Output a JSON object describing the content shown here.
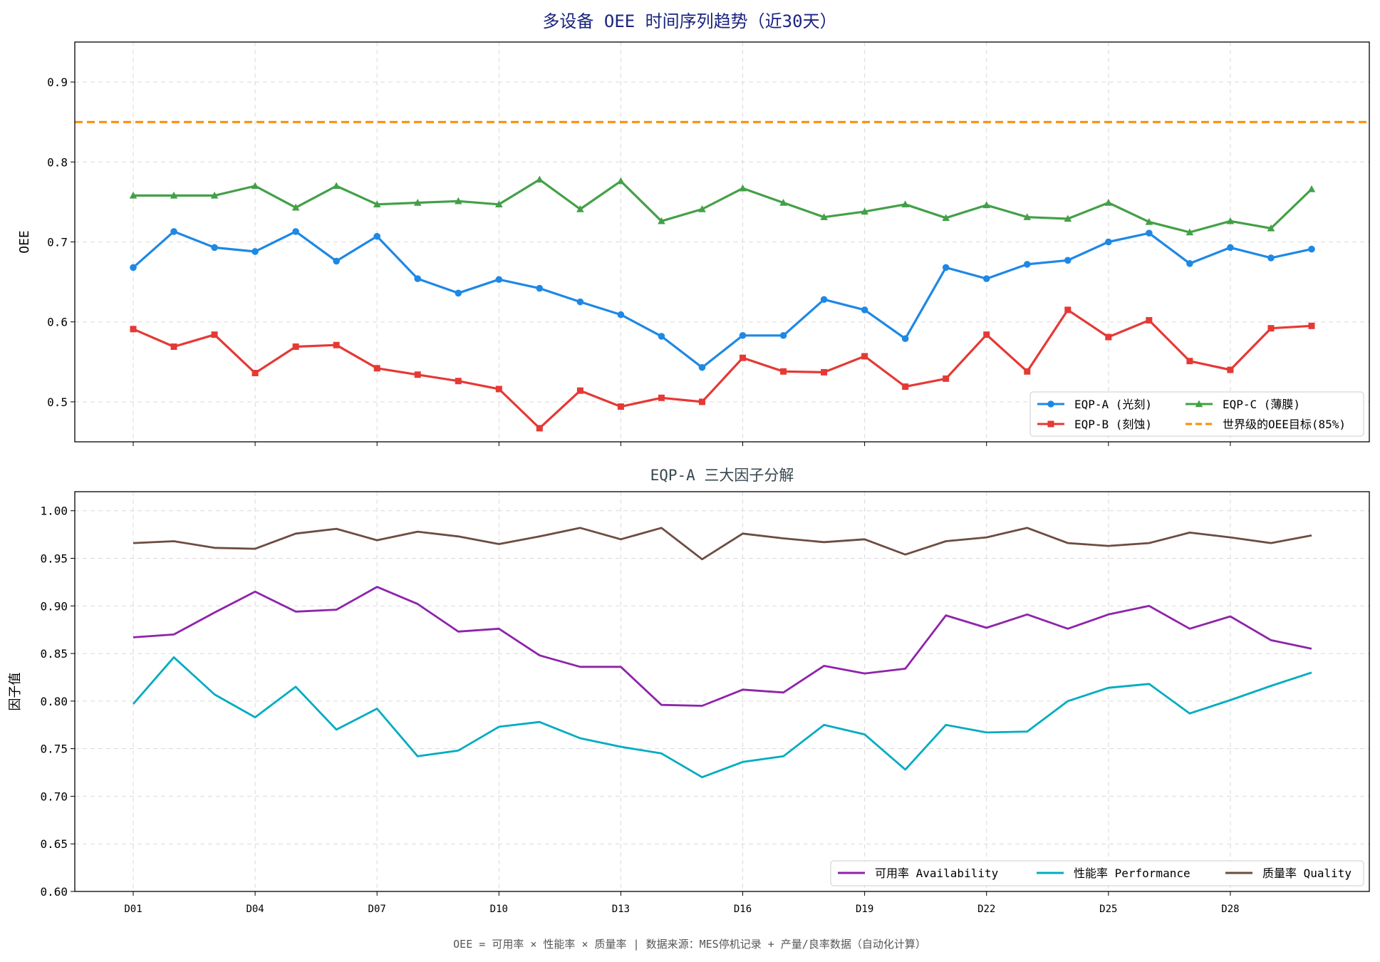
{
  "figure_title": "多设备 OEE 时间序列趋势（近30天）",
  "footer_note": "OEE = 可用率 × 性能率 × 质量率  |  数据来源：MES停机记录 + 产量/良率数据（自动化计算）",
  "colors": {
    "title_top": "#1a237e",
    "title_bottom": "#37474f",
    "eqp_a": "#1e88e5",
    "eqp_b": "#e53935",
    "eqp_c": "#43a047",
    "target": "#fb8c00",
    "availability": "#8e24aa",
    "performance": "#00acc1",
    "quality": "#6d4c41"
  },
  "chart_data": [
    {
      "type": "line",
      "title": "",
      "xlabel": "",
      "ylabel": "OEE",
      "ylim": [
        0.45,
        0.95
      ],
      "yticks": [
        0.5,
        0.6,
        0.7,
        0.8,
        0.9
      ],
      "ytick_labels": [
        "0.5",
        "0.6",
        "0.7",
        "0.8",
        "0.9"
      ],
      "x": [
        "D01",
        "D02",
        "D03",
        "D04",
        "D05",
        "D06",
        "D07",
        "D08",
        "D09",
        "D10",
        "D11",
        "D12",
        "D13",
        "D14",
        "D15",
        "D16",
        "D17",
        "D18",
        "D19",
        "D20",
        "D21",
        "D22",
        "D23",
        "D24",
        "D25",
        "D26",
        "D27",
        "D28",
        "D29",
        "D30"
      ],
      "xtick_labels": [
        "D01",
        "D04",
        "D07",
        "D10",
        "D13",
        "D16",
        "D19",
        "D22",
        "D25",
        "D28"
      ],
      "grid": true,
      "legend_position": "bottom-right",
      "series": [
        {
          "name": "EQP-A (光刻)",
          "color_key": "eqp_a",
          "marker": "circle",
          "values": [
            0.668,
            0.713,
            0.693,
            0.688,
            0.713,
            0.676,
            0.707,
            0.654,
            0.636,
            0.653,
            0.642,
            0.625,
            0.609,
            0.582,
            0.543,
            0.583,
            0.583,
            0.628,
            0.615,
            0.579,
            0.668,
            0.654,
            0.672,
            0.677,
            0.7,
            0.711,
            0.673,
            0.693,
            0.68,
            0.691
          ]
        },
        {
          "name": "EQP-B (刻蚀)",
          "color_key": "eqp_b",
          "marker": "square",
          "values": [
            0.591,
            0.569,
            0.584,
            0.536,
            0.569,
            0.571,
            0.542,
            0.534,
            0.526,
            0.516,
            0.467,
            0.514,
            0.494,
            0.505,
            0.5,
            0.555,
            0.538,
            0.537,
            0.557,
            0.519,
            0.529,
            0.584,
            0.538,
            0.615,
            0.581,
            0.602,
            0.551,
            0.54,
            0.592,
            0.595
          ]
        },
        {
          "name": "EQP-C (薄膜)",
          "color_key": "eqp_c",
          "marker": "triangle",
          "values": [
            0.758,
            0.758,
            0.758,
            0.77,
            0.743,
            0.77,
            0.747,
            0.749,
            0.751,
            0.747,
            0.778,
            0.741,
            0.776,
            0.726,
            0.741,
            0.767,
            0.749,
            0.731,
            0.738,
            0.747,
            0.73,
            0.746,
            0.731,
            0.729,
            0.749,
            0.725,
            0.712,
            0.726,
            0.717,
            0.766
          ]
        }
      ],
      "reference_line": {
        "name": "世界级的OEE目标(85%)",
        "value": 0.85,
        "style": "dashed",
        "color_key": "target"
      }
    },
    {
      "type": "line",
      "title": "EQP-A 三大因子分解",
      "xlabel": "",
      "ylabel": "因子值",
      "ylim": [
        0.6,
        1.02
      ],
      "yticks": [
        0.6,
        0.65,
        0.7,
        0.75,
        0.8,
        0.85,
        0.9,
        0.95,
        1.0
      ],
      "ytick_labels": [
        "0.60",
        "0.65",
        "0.70",
        "0.75",
        "0.80",
        "0.85",
        "0.90",
        "0.95",
        "1.00"
      ],
      "x": [
        "D01",
        "D02",
        "D03",
        "D04",
        "D05",
        "D06",
        "D07",
        "D08",
        "D09",
        "D10",
        "D11",
        "D12",
        "D13",
        "D14",
        "D15",
        "D16",
        "D17",
        "D18",
        "D19",
        "D20",
        "D21",
        "D22",
        "D23",
        "D24",
        "D25",
        "D26",
        "D27",
        "D28",
        "D29",
        "D30"
      ],
      "xtick_labels": [
        "D01",
        "D04",
        "D07",
        "D10",
        "D13",
        "D16",
        "D19",
        "D22",
        "D25",
        "D28"
      ],
      "grid": true,
      "legend_position": "bottom-right",
      "series": [
        {
          "name": "可用率 Availability",
          "color_key": "availability",
          "values": [
            0.867,
            0.87,
            0.893,
            0.915,
            0.894,
            0.896,
            0.92,
            0.902,
            0.873,
            0.876,
            0.848,
            0.836,
            0.836,
            0.796,
            0.795,
            0.812,
            0.809,
            0.837,
            0.829,
            0.834,
            0.89,
            0.877,
            0.891,
            0.876,
            0.891,
            0.9,
            0.876,
            0.889,
            0.864,
            0.855
          ]
        },
        {
          "name": "性能率 Performance",
          "color_key": "performance",
          "values": [
            0.797,
            0.846,
            0.807,
            0.783,
            0.815,
            0.77,
            0.792,
            0.742,
            0.748,
            0.773,
            0.778,
            0.761,
            0.752,
            0.745,
            0.72,
            0.736,
            0.742,
            0.775,
            0.765,
            0.728,
            0.775,
            0.767,
            0.768,
            0.8,
            0.814,
            0.818,
            0.787,
            0.801,
            0.816,
            0.83
          ]
        },
        {
          "name": "质量率 Quality",
          "color_key": "quality",
          "values": [
            0.966,
            0.968,
            0.961,
            0.96,
            0.976,
            0.981,
            0.969,
            0.978,
            0.973,
            0.965,
            0.973,
            0.982,
            0.97,
            0.982,
            0.949,
            0.976,
            0.971,
            0.967,
            0.97,
            0.954,
            0.968,
            0.972,
            0.982,
            0.966,
            0.963,
            0.966,
            0.977,
            0.972,
            0.966,
            0.974
          ]
        }
      ]
    }
  ]
}
